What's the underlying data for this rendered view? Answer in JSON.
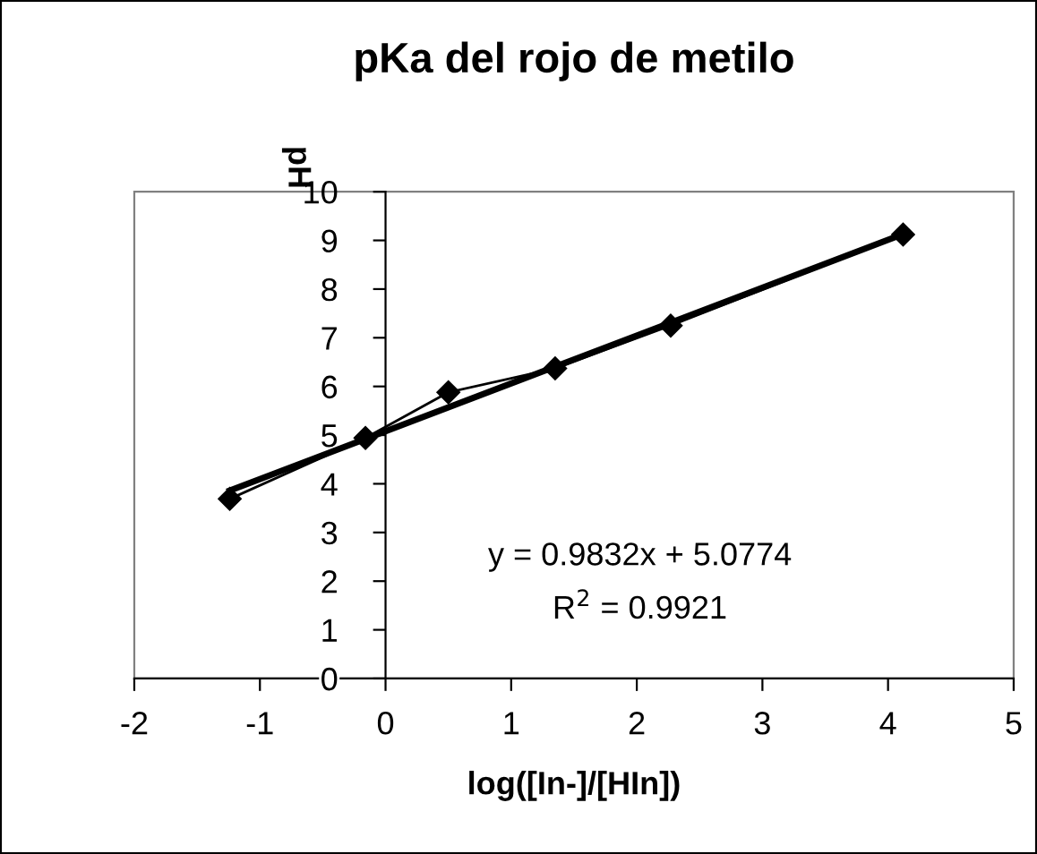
{
  "chart_data": {
    "type": "line",
    "title": "pKa del rojo de metilo",
    "xlabel": "log([In-]/[HIn])",
    "ylabel": "pH",
    "series": [
      {
        "color": "#000000",
        "x": [
          -1.24,
          -0.16,
          0.5,
          1.35,
          2.27,
          4.12
        ],
        "values": [
          3.69,
          4.94,
          5.88,
          6.37,
          7.25,
          9.12
        ],
        "marker": "diamond"
      },
      {
        "color": "#000000",
        "x": [
          -1.24,
          4.12
        ],
        "values": [
          3.86,
          9.13
        ],
        "marker": "none"
      }
    ],
    "annotations": [
      "y = 0.9832x + 5.0774",
      "R$^{2}$ = 0.9921"
    ],
    "xlim": [
      -2,
      5
    ],
    "xticks": [
      -2,
      -1,
      0,
      1,
      2,
      3,
      4,
      5
    ],
    "ylim": [
      0,
      10
    ],
    "yticks": [
      0,
      1,
      2,
      3,
      4,
      5,
      6,
      7,
      8,
      9,
      10
    ],
    "grid": false,
    "legend": false
  }
}
